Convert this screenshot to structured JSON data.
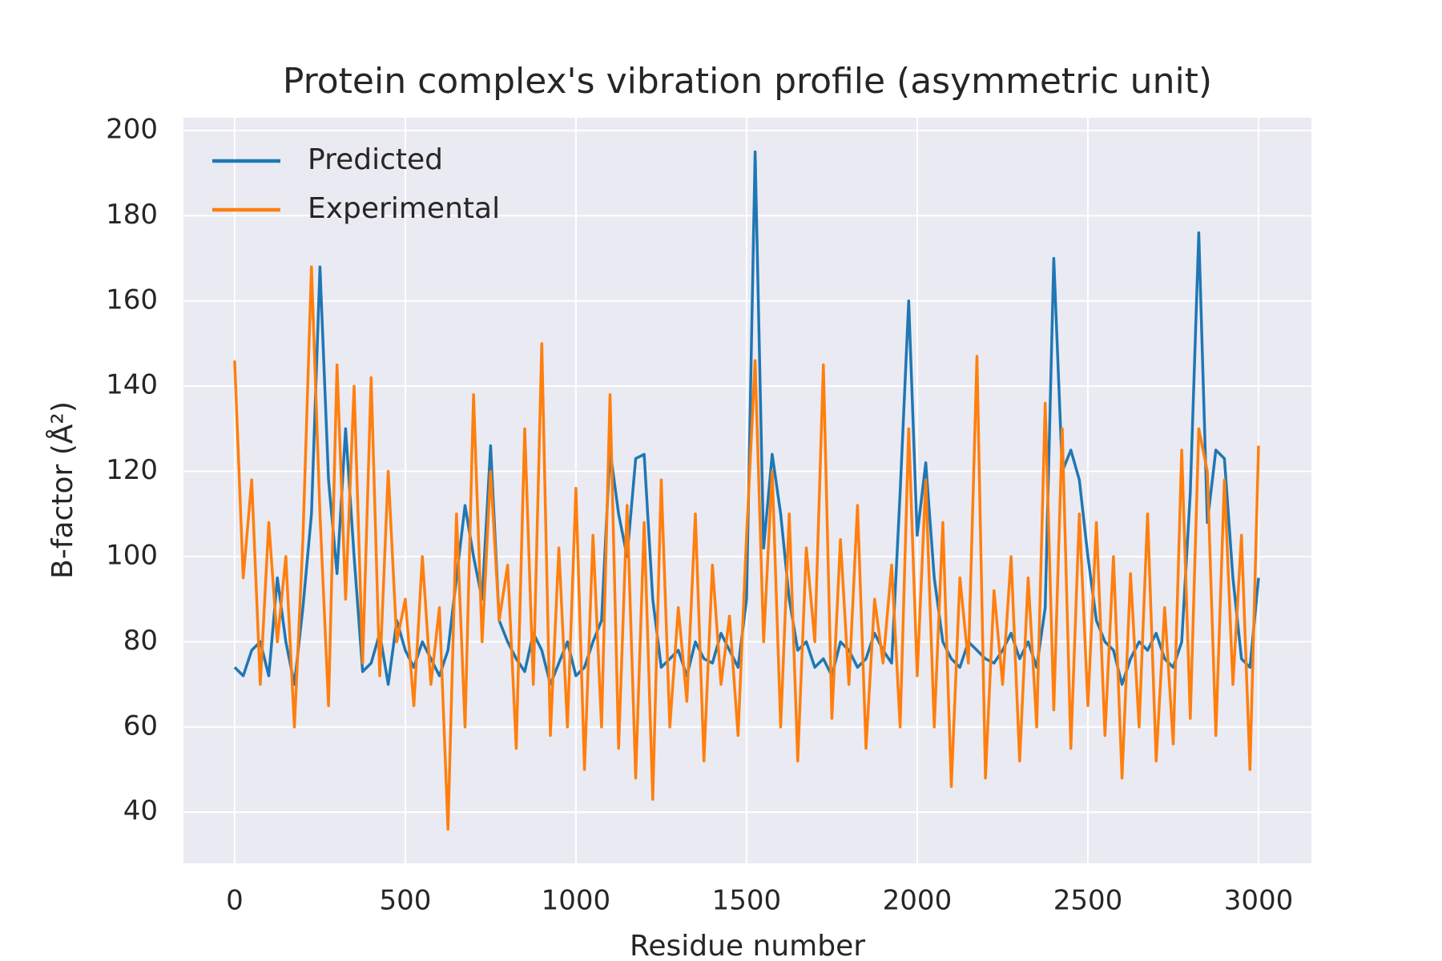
{
  "chart_data": {
    "type": "line",
    "title": "Protein complex's vibration profile (asymmetric unit)",
    "x_label": "Residue number",
    "y_label": "B-factor (Å²)",
    "x": [
      0,
      25,
      50,
      75,
      100,
      125,
      150,
      175,
      200,
      225,
      250,
      275,
      300,
      325,
      350,
      375,
      400,
      425,
      450,
      475,
      500,
      525,
      550,
      575,
      600,
      625,
      650,
      675,
      700,
      725,
      750,
      775,
      800,
      825,
      850,
      875,
      900,
      925,
      950,
      975,
      1000,
      1025,
      1050,
      1075,
      1100,
      1125,
      1150,
      1175,
      1200,
      1225,
      1250,
      1275,
      1300,
      1325,
      1350,
      1375,
      1400,
      1425,
      1450,
      1475,
      1500,
      1525,
      1550,
      1575,
      1600,
      1625,
      1650,
      1675,
      1700,
      1725,
      1750,
      1775,
      1800,
      1825,
      1850,
      1875,
      1900,
      1925,
      1950,
      1975,
      2000,
      2025,
      2050,
      2075,
      2100,
      2125,
      2150,
      2175,
      2200,
      2225,
      2250,
      2275,
      2300,
      2325,
      2350,
      2375,
      2400,
      2425,
      2450,
      2475,
      2500,
      2525,
      2550,
      2575,
      2600,
      2625,
      2650,
      2675,
      2700,
      2725,
      2750,
      2775,
      2800,
      2825,
      2850,
      2875,
      2900,
      2925,
      2950,
      2975,
      3000
    ],
    "series": [
      {
        "name": "Predicted",
        "color": "#1f77b4",
        "values": [
          74,
          72,
          78,
          80,
          72,
          95,
          80,
          70,
          88,
          110,
          168,
          118,
          96,
          130,
          100,
          73,
          75,
          82,
          70,
          85,
          78,
          74,
          80,
          76,
          72,
          78,
          95,
          112,
          100,
          90,
          126,
          85,
          80,
          76,
          73,
          82,
          78,
          70,
          75,
          80,
          72,
          74,
          80,
          85,
          125,
          110,
          100,
          123,
          124,
          90,
          74,
          76,
          78,
          72,
          80,
          76,
          75,
          82,
          78,
          74,
          90,
          195,
          102,
          124,
          110,
          90,
          78,
          80,
          74,
          76,
          72,
          80,
          78,
          74,
          76,
          82,
          78,
          75,
          115,
          160,
          105,
          122,
          95,
          80,
          76,
          74,
          80,
          78,
          76,
          75,
          78,
          82,
          76,
          80,
          74,
          88,
          170,
          120,
          125,
          118,
          100,
          85,
          80,
          78,
          70,
          76,
          80,
          78,
          82,
          76,
          74,
          80,
          115,
          176,
          108,
          125,
          123,
          95,
          76,
          74,
          95
        ]
      },
      {
        "name": "Experimental",
        "color": "#ff7f0e",
        "values": [
          146,
          95,
          118,
          70,
          108,
          80,
          100,
          60,
          104,
          168,
          110,
          65,
          145,
          90,
          140,
          75,
          142,
          72,
          120,
          80,
          90,
          65,
          100,
          70,
          88,
          36,
          110,
          60,
          138,
          80,
          120,
          85,
          98,
          55,
          130,
          70,
          150,
          58,
          102,
          60,
          116,
          50,
          105,
          60,
          138,
          55,
          112,
          48,
          108,
          43,
          118,
          60,
          88,
          66,
          110,
          52,
          98,
          70,
          86,
          58,
          105,
          146,
          80,
          120,
          60,
          110,
          52,
          102,
          80,
          145,
          62,
          104,
          70,
          112,
          55,
          90,
          75,
          98,
          60,
          130,
          72,
          118,
          60,
          108,
          46,
          95,
          75,
          147,
          48,
          92,
          70,
          100,
          52,
          95,
          60,
          136,
          64,
          130,
          55,
          110,
          65,
          108,
          58,
          100,
          48,
          96,
          60,
          110,
          52,
          88,
          56,
          125,
          62,
          130,
          120,
          58,
          118,
          70,
          105,
          50,
          126
        ]
      }
    ],
    "xlim": [
      -150,
      3155
    ],
    "ylim": [
      28,
      203
    ],
    "xticks": [
      0,
      500,
      1000,
      1500,
      2000,
      2500,
      3000
    ],
    "yticks": [
      40,
      60,
      80,
      100,
      120,
      140,
      160,
      180,
      200
    ],
    "grid": true,
    "legend": "upper left"
  }
}
